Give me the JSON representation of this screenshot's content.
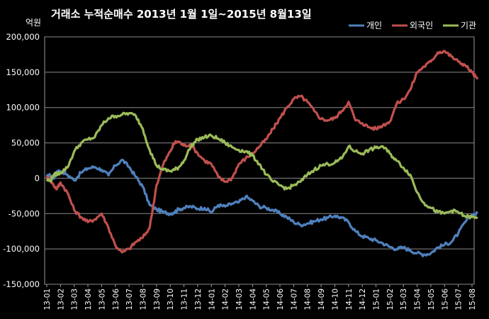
{
  "chart_data": {
    "type": "line",
    "title": "거래소 누적순매수 2013년 1월 1일~2015년 8월13일",
    "unit_label": "억원",
    "ylim": [
      -150000,
      200000
    ],
    "ytick_step": 50000,
    "ytick_labels": [
      "200,000",
      "150,000",
      "100,000",
      "50,000",
      "0",
      "-50,000",
      "-100,000",
      "-150,000"
    ],
    "grid": "horizontal",
    "legend_position": "top-right",
    "categories": [
      "13-01",
      "13-02",
      "13-03",
      "13-04",
      "13-05",
      "13-06",
      "13-07",
      "13-08",
      "13-09",
      "13-10",
      "13-11",
      "13-12",
      "14-01",
      "14-02",
      "14-03",
      "14-04",
      "14-05",
      "14-06",
      "14-07",
      "14-08",
      "14-09",
      "14-10",
      "14-11",
      "14-12",
      "15-01",
      "15-02",
      "15-03",
      "15-04",
      "15-05",
      "15-06",
      "15-07",
      "15-08"
    ],
    "x": [
      0,
      0.25,
      0.5,
      0.75,
      1,
      1.5,
      2,
      2.5,
      3,
      3.5,
      4,
      4.5,
      5,
      5.5,
      6,
      6.5,
      7,
      7.5,
      8,
      8.5,
      9,
      9.3,
      9.6,
      10,
      10.5,
      11,
      11.5,
      12,
      12.5,
      13,
      13.5,
      14,
      14.5,
      15,
      15.5,
      16,
      16.5,
      17,
      17.5,
      18,
      18.5,
      19,
      19.5,
      20,
      20.5,
      21,
      21.5,
      22,
      22.5,
      23,
      23.5,
      24,
      24.5,
      25,
      25.5,
      26,
      26.5,
      27,
      27.5,
      28,
      28.5,
      29,
      29.5,
      30,
      30.5,
      31,
      31.4
    ],
    "series": [
      {
        "name": "개인",
        "color": "#4f81bd",
        "values": [
          2000,
          4000,
          0,
          10000,
          10000,
          5000,
          -3000,
          8000,
          14000,
          16000,
          12000,
          4000,
          18000,
          26000,
          16000,
          2000,
          -12000,
          -38000,
          -44000,
          -48000,
          -50000,
          -48000,
          -44000,
          -42000,
          -40000,
          -43000,
          -42000,
          -48000,
          -38000,
          -40000,
          -36000,
          -34000,
          -26000,
          -32000,
          -40000,
          -42000,
          -45000,
          -50000,
          -55000,
          -62000,
          -66000,
          -64000,
          -61000,
          -58000,
          -56000,
          -53000,
          -56000,
          -62000,
          -75000,
          -82000,
          -85000,
          -88000,
          -92000,
          -97000,
          -100000,
          -98000,
          -102000,
          -106000,
          -108000,
          -106000,
          -98000,
          -94000,
          -90000,
          -78000,
          -62000,
          -52000,
          -50000
        ]
      },
      {
        "name": "외국인",
        "color": "#c0504d",
        "values": [
          2000,
          -2000,
          -10000,
          -15000,
          -6000,
          -20000,
          -45000,
          -55000,
          -62000,
          -58000,
          -50000,
          -70000,
          -95000,
          -105000,
          -100000,
          -90000,
          -84000,
          -70000,
          -10000,
          20000,
          38000,
          50000,
          52000,
          46000,
          48000,
          35000,
          25000,
          20000,
          2000,
          -5000,
          0,
          20000,
          28000,
          35000,
          45000,
          55000,
          70000,
          85000,
          100000,
          112000,
          116000,
          108000,
          95000,
          84000,
          82000,
          85000,
          95000,
          108000,
          82000,
          78000,
          72000,
          70000,
          75000,
          80000,
          105000,
          112000,
          125000,
          150000,
          158000,
          165000,
          178000,
          180000,
          172000,
          165000,
          160000,
          150000,
          140000
        ]
      },
      {
        "name": "기관",
        "color": "#9bbb59",
        "values": [
          -2000,
          -4000,
          5000,
          6000,
          8000,
          15000,
          38000,
          50000,
          55000,
          58000,
          75000,
          85000,
          88000,
          90000,
          92000,
          88000,
          70000,
          40000,
          18000,
          12000,
          10000,
          12000,
          15000,
          25000,
          45000,
          55000,
          58000,
          60000,
          56000,
          50000,
          44000,
          40000,
          38000,
          32000,
          20000,
          5000,
          -5000,
          -10000,
          -15000,
          -10000,
          -5000,
          5000,
          12000,
          18000,
          20000,
          22000,
          28000,
          45000,
          38000,
          35000,
          40000,
          43000,
          45000,
          35000,
          25000,
          15000,
          5000,
          -20000,
          -35000,
          -42000,
          -48000,
          -50000,
          -46000,
          -48000,
          -54000,
          -55000,
          -57000
        ]
      }
    ]
  }
}
